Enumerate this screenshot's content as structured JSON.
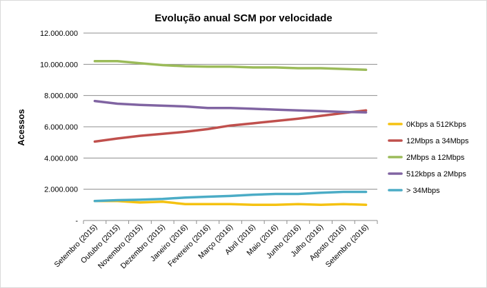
{
  "chart_data": {
    "type": "line",
    "title": "Evolução anual SCM por velocidade",
    "xlabel": "",
    "ylabel": "Acessos",
    "ylim": [
      0,
      12000000
    ],
    "y_ticks": [
      {
        "value": 0,
        "label": "-"
      },
      {
        "value": 2000000,
        "label": "2.000.000"
      },
      {
        "value": 4000000,
        "label": "4.000.000"
      },
      {
        "value": 6000000,
        "label": "6.000.000"
      },
      {
        "value": 8000000,
        "label": "8.000.000"
      },
      {
        "value": 10000000,
        "label": "10.000.000"
      },
      {
        "value": 12000000,
        "label": "12.000.000"
      }
    ],
    "grid": true,
    "legend_position": "right",
    "categories": [
      "Setembro (2015)",
      "Outubro (2015)",
      "Novembro (2015)",
      "Dezembro (2015)",
      "Janeiro (2016)",
      "Fevereiro (2016)",
      "Março (2016)",
      "Abril (2016)",
      "Maio (2016)",
      "Junho (2016)",
      "Julho (2016)",
      "Agosto (2016)",
      "Setembro (2016)"
    ],
    "series": [
      {
        "name": "0Kbps a 512Kbps",
        "color": "#f5c211",
        "values": [
          1250000,
          1250000,
          1150000,
          1200000,
          1050000,
          1050000,
          1050000,
          1000000,
          1000000,
          1050000,
          1000000,
          1050000,
          1000000
        ]
      },
      {
        "name": "12Mbps a 34Mbps",
        "color": "#c0504d",
        "values": [
          5050000,
          5250000,
          5420000,
          5550000,
          5680000,
          5850000,
          6080000,
          6220000,
          6370000,
          6520000,
          6700000,
          6880000,
          7050000
        ]
      },
      {
        "name": "2Mbps a 12Mbps",
        "color": "#9bbb59",
        "values": [
          10200000,
          10200000,
          10070000,
          9950000,
          9880000,
          9850000,
          9850000,
          9800000,
          9800000,
          9750000,
          9750000,
          9700000,
          9650000
        ]
      },
      {
        "name": "512kbps a 2Mbps",
        "color": "#8064a2",
        "values": [
          7650000,
          7480000,
          7400000,
          7350000,
          7300000,
          7200000,
          7200000,
          7150000,
          7100000,
          7050000,
          7000000,
          6950000,
          6920000
        ]
      },
      {
        "name": "> 34Mbps",
        "color": "#4bacc6",
        "values": [
          1250000,
          1300000,
          1330000,
          1380000,
          1470000,
          1520000,
          1570000,
          1650000,
          1700000,
          1700000,
          1780000,
          1830000,
          1830000
        ]
      }
    ]
  }
}
